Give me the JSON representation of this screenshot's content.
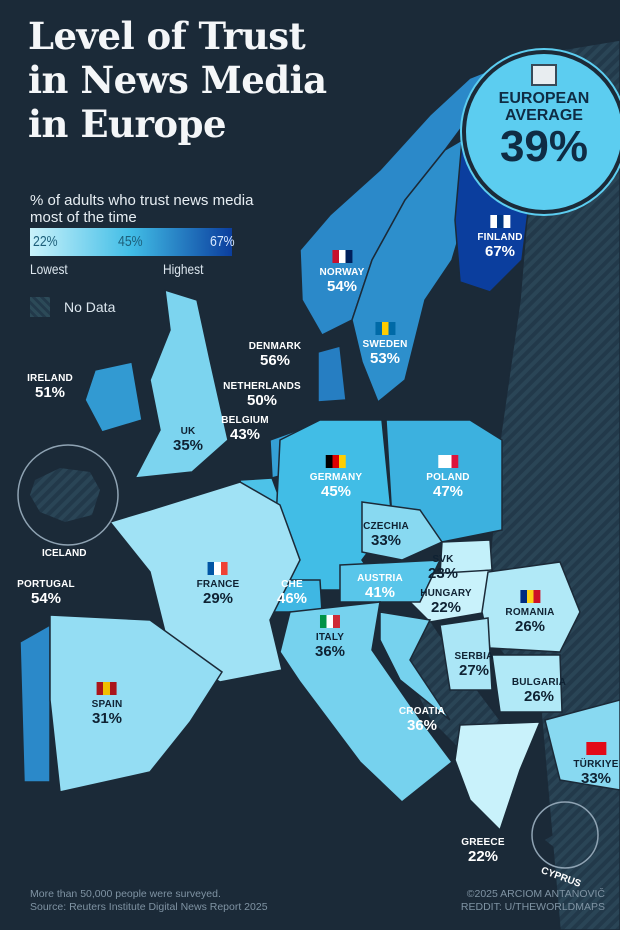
{
  "header": {
    "title_lines": [
      "Level of Trust",
      "in News Media",
      "in Europe"
    ],
    "subtitle": "% of adults who trust news media most of the time"
  },
  "legend": {
    "low_value": "22%",
    "mid_value": "45%",
    "high_value": "67%",
    "low_label": "Lowest",
    "high_label": "Highest",
    "no_data_label": "No Data",
    "colors": {
      "low": "#c9f2fb",
      "mid": "#41bde6",
      "high": "#0b3e9e",
      "no_data": "#2c4a58",
      "background": "#1b2a38"
    }
  },
  "european_average": {
    "icon": "newspaper-icon",
    "label_line1": "EUROPEAN",
    "label_line2": "AVERAGE",
    "value": "39%"
  },
  "countries": [
    {
      "name": "NORWAY",
      "value": 54,
      "display": "54%"
    },
    {
      "name": "SWEDEN",
      "value": 53,
      "display": "53%"
    },
    {
      "name": "FINLAND",
      "value": 67,
      "display": "67%"
    },
    {
      "name": "DENMARK",
      "value": 56,
      "display": "56%"
    },
    {
      "name": "IRELAND",
      "value": 51,
      "display": "51%"
    },
    {
      "name": "UK",
      "value": 35,
      "display": "35%"
    },
    {
      "name": "NETHERLANDS",
      "value": 50,
      "display": "50%"
    },
    {
      "name": "BELGIUM",
      "value": 43,
      "display": "43%"
    },
    {
      "name": "GERMANY",
      "value": 45,
      "display": "45%"
    },
    {
      "name": "POLAND",
      "value": 47,
      "display": "47%"
    },
    {
      "name": "CZECHIA",
      "value": 33,
      "display": "33%"
    },
    {
      "name": "SVK",
      "value": 23,
      "display": "23%"
    },
    {
      "name": "HUNGARY",
      "value": 22,
      "display": "22%"
    },
    {
      "name": "AUSTRIA",
      "value": 41,
      "display": "41%"
    },
    {
      "name": "CHE",
      "value": 46,
      "display": "46%"
    },
    {
      "name": "FRANCE",
      "value": 29,
      "display": "29%"
    },
    {
      "name": "PORTUGAL",
      "value": 54,
      "display": "54%"
    },
    {
      "name": "SPAIN",
      "value": 31,
      "display": "31%"
    },
    {
      "name": "ITALY",
      "value": 36,
      "display": "36%"
    },
    {
      "name": "ROMANIA",
      "value": 26,
      "display": "26%"
    },
    {
      "name": "SERBIA",
      "value": 27,
      "display": "27%"
    },
    {
      "name": "BULGARIA",
      "value": 26,
      "display": "26%"
    },
    {
      "name": "CROATIA",
      "value": 36,
      "display": "36%"
    },
    {
      "name": "GREECE",
      "value": 22,
      "display": "22%"
    },
    {
      "name": "TÜRKIYE",
      "value": 33,
      "display": "33%"
    }
  ],
  "insets": {
    "iceland": "ICELAND",
    "cyprus": "CYPRUS"
  },
  "footer": {
    "line1": "More than 50,000 people were surveyed.",
    "line2": "Source: Reuters Institute Digital News Report 2025",
    "credit1": "©2025 ARCIOM ANTANOVIČ",
    "credit2": "REDDIT: U/THEWORLDMAPS"
  }
}
